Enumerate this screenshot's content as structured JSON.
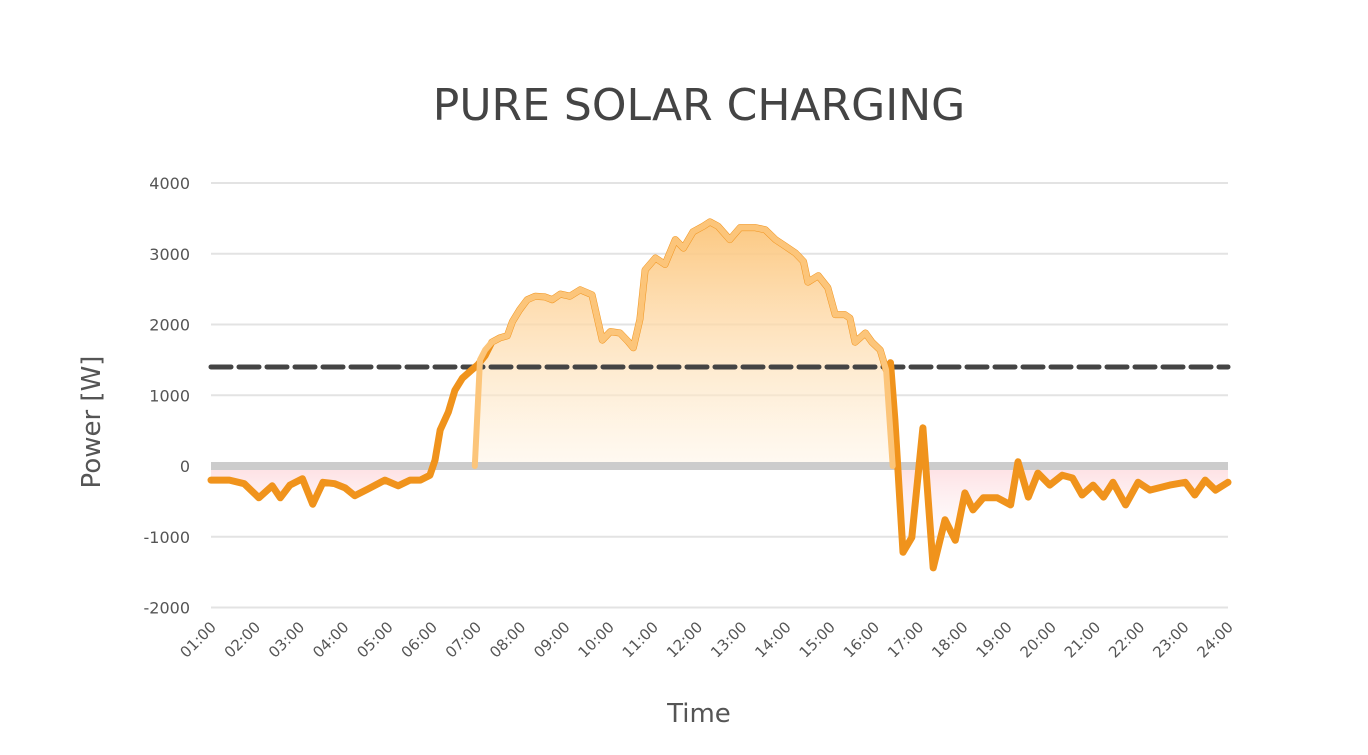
{
  "chart_data": {
    "type": "line",
    "title": "PURE SOLAR CHARGING",
    "xlabel": "Time",
    "ylabel": "Power [W]",
    "ylim": [
      -2000,
      4000
    ],
    "yticks": [
      "4000",
      "3000",
      "2000",
      "1000",
      "0",
      "-1000",
      "-2000"
    ],
    "xticks": [
      "01:00",
      "02:00",
      "03:00",
      "04:00",
      "05:00",
      "06:00",
      "07:00",
      "08:00",
      "09:00",
      "10:00",
      "11:00",
      "12:00",
      "13:00",
      "14:00",
      "15:00",
      "16:00",
      "17:00",
      "18:00",
      "19:00",
      "20:00",
      "21:00",
      "22:00",
      "23:00",
      "24:00"
    ],
    "grid": "horizontal",
    "threshold": {
      "value": 1400,
      "style": "dashed",
      "color": "#444444"
    },
    "colors": {
      "grid_power": "#f0931c",
      "solar": "#fcc57a",
      "negative_fill": "#f9a0a8",
      "zero_line": "#cccccc"
    },
    "series": [
      {
        "key": "solar",
        "style": "area",
        "points": [
          [
            "06:58",
            0
          ],
          [
            "07:05",
            1500
          ],
          [
            "07:12",
            1640
          ],
          [
            "07:21",
            1750
          ],
          [
            "07:32",
            1810
          ],
          [
            "07:42",
            1840
          ],
          [
            "07:49",
            2040
          ],
          [
            "07:59",
            2210
          ],
          [
            "08:09",
            2350
          ],
          [
            "08:20",
            2400
          ],
          [
            "08:33",
            2390
          ],
          [
            "08:43",
            2350
          ],
          [
            "08:54",
            2430
          ],
          [
            "09:07",
            2400
          ],
          [
            "09:21",
            2490
          ],
          [
            "09:37",
            2420
          ],
          [
            "09:51",
            1780
          ],
          [
            "10:02",
            1900
          ],
          [
            "10:15",
            1880
          ],
          [
            "10:26",
            1760
          ],
          [
            "10:33",
            1670
          ],
          [
            "10:42",
            2070
          ],
          [
            "10:49",
            2770
          ],
          [
            "11:03",
            2940
          ],
          [
            "11:16",
            2850
          ],
          [
            "11:30",
            3200
          ],
          [
            "11:41",
            3080
          ],
          [
            "11:54",
            3310
          ],
          [
            "12:08",
            3390
          ],
          [
            "12:17",
            3450
          ],
          [
            "12:28",
            3390
          ],
          [
            "12:44",
            3200
          ],
          [
            "12:58",
            3370
          ],
          [
            "13:18",
            3370
          ],
          [
            "13:32",
            3340
          ],
          [
            "13:46",
            3200
          ],
          [
            "13:59",
            3110
          ],
          [
            "14:13",
            3010
          ],
          [
            "14:24",
            2890
          ],
          [
            "14:30",
            2600
          ],
          [
            "14:44",
            2690
          ],
          [
            "14:57",
            2520
          ],
          [
            "15:07",
            2140
          ],
          [
            "15:20",
            2140
          ],
          [
            "15:27",
            2090
          ],
          [
            "15:34",
            1750
          ],
          [
            "15:48",
            1880
          ],
          [
            "15:57",
            1750
          ],
          [
            "16:08",
            1640
          ],
          [
            "16:16",
            1360
          ],
          [
            "16:25",
            0
          ]
        ]
      },
      {
        "key": "grid_power",
        "style": "line",
        "points": [
          [
            "01:00",
            -200
          ],
          [
            "01:25",
            -200
          ],
          [
            "01:45",
            -250
          ],
          [
            "02:05",
            -450
          ],
          [
            "02:23",
            -280
          ],
          [
            "02:34",
            -450
          ],
          [
            "02:47",
            -270
          ],
          [
            "03:04",
            -180
          ],
          [
            "03:18",
            -540
          ],
          [
            "03:32",
            -230
          ],
          [
            "03:48",
            -250
          ],
          [
            "04:02",
            -310
          ],
          [
            "04:15",
            -420
          ],
          [
            "04:33",
            -325
          ],
          [
            "04:56",
            -200
          ],
          [
            "05:14",
            -280
          ],
          [
            "05:30",
            -200
          ],
          [
            "05:44",
            -200
          ],
          [
            "05:57",
            -130
          ],
          [
            "06:04",
            80
          ],
          [
            "06:11",
            510
          ],
          [
            "06:22",
            760
          ],
          [
            "06:31",
            1070
          ],
          [
            "06:41",
            1240
          ],
          [
            "06:54",
            1360
          ],
          [
            "07:02",
            1430
          ],
          [
            "07:12",
            1560
          ],
          [
            "16:22",
            1460
          ],
          [
            "16:28",
            650
          ],
          [
            "16:39",
            -1220
          ],
          [
            "16:51",
            -1010
          ],
          [
            "17:06",
            540
          ],
          [
            "17:20",
            -1440
          ],
          [
            "17:36",
            -760
          ],
          [
            "17:50",
            -1050
          ],
          [
            "18:03",
            -380
          ],
          [
            "18:14",
            -620
          ],
          [
            "18:28",
            -450
          ],
          [
            "18:47",
            -450
          ],
          [
            "19:05",
            -550
          ],
          [
            "19:15",
            60
          ],
          [
            "19:29",
            -440
          ],
          [
            "19:42",
            -100
          ],
          [
            "19:58",
            -270
          ],
          [
            "20:15",
            -130
          ],
          [
            "20:29",
            -170
          ],
          [
            "20:42",
            -410
          ],
          [
            "20:57",
            -270
          ],
          [
            "21:11",
            -440
          ],
          [
            "21:24",
            -230
          ],
          [
            "21:41",
            -550
          ],
          [
            "21:58",
            -230
          ],
          [
            "22:14",
            -340
          ],
          [
            "22:41",
            -270
          ],
          [
            "23:02",
            -230
          ],
          [
            "23:15",
            -410
          ],
          [
            "23:29",
            -200
          ],
          [
            "23:43",
            -340
          ],
          [
            "24:00",
            -230
          ]
        ]
      }
    ]
  }
}
